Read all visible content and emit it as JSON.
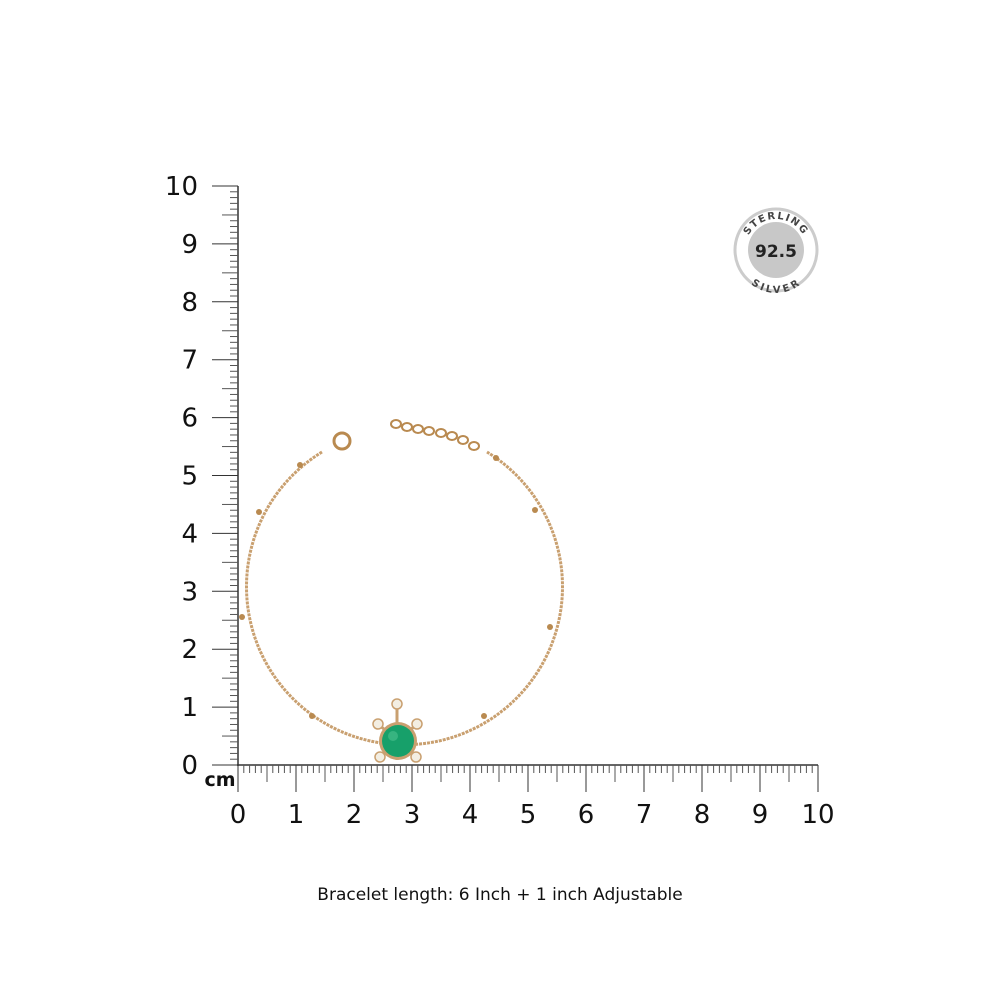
{
  "ruler": {
    "unit": "cm",
    "y_labels": [
      0,
      1,
      2,
      3,
      4,
      5,
      6,
      7,
      8,
      9,
      10
    ],
    "x_labels": [
      0,
      1,
      2,
      3,
      4,
      5,
      6,
      7,
      8,
      9,
      10
    ]
  },
  "badge": {
    "top": "STERLING",
    "center": "92.5",
    "bottom": "SILVER"
  },
  "caption": "Bracelet length:  6 Inch + 1 inch Adjustable"
}
